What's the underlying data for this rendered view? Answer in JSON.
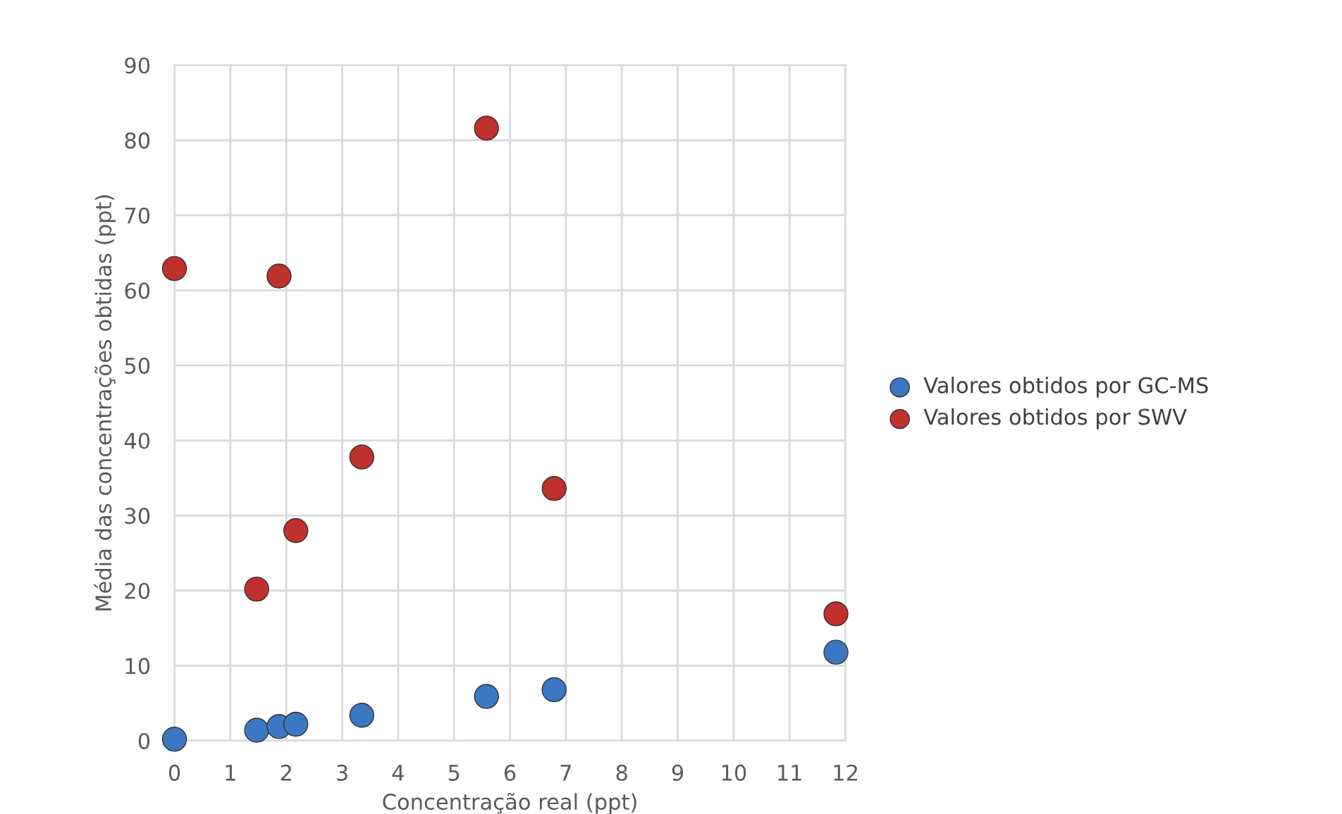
{
  "chart_data": {
    "type": "scatter",
    "xlabel": "Concentração real (ppt)",
    "ylabel": "Média das concentrações obtidas (ppt)",
    "xlim": [
      0,
      12
    ],
    "ylim": [
      0,
      90
    ],
    "xticks": [
      0,
      1,
      2,
      3,
      4,
      5,
      6,
      7,
      8,
      9,
      10,
      11,
      12
    ],
    "yticks": [
      0,
      10,
      20,
      30,
      40,
      50,
      60,
      70,
      80,
      90
    ],
    "grid": true,
    "legend": "right",
    "marker": "circle",
    "series": [
      {
        "name": "Valores obtidos por GC-MS",
        "color": "#3a78c3",
        "x": [
          0,
          1.47,
          1.87,
          2.17,
          3.35,
          5.58,
          6.79,
          11.83
        ],
        "values": [
          0.2,
          1.4,
          1.9,
          2.2,
          3.4,
          5.9,
          6.8,
          11.8
        ]
      },
      {
        "name": "Valores obtidos por SWV",
        "color": "#c0302c",
        "x": [
          0,
          1.47,
          1.87,
          2.17,
          3.35,
          5.58,
          6.79,
          11.83
        ],
        "values": [
          62.9,
          20.2,
          61.9,
          28.0,
          37.8,
          81.6,
          33.6,
          16.9
        ]
      }
    ]
  }
}
